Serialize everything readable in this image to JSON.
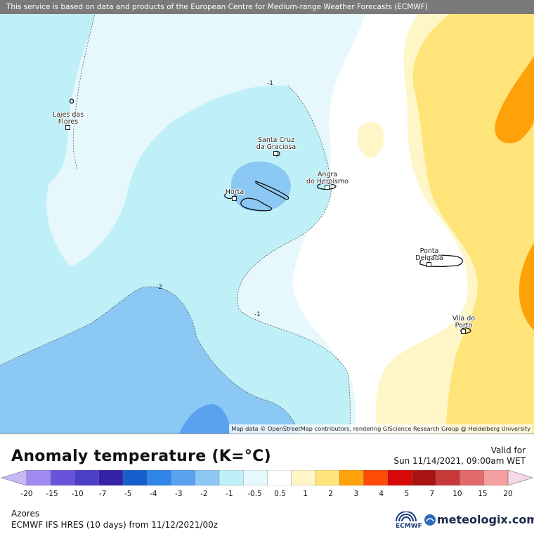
{
  "header": {
    "notice": "This service is based on data and products of the European Centre for Medium-range Weather Forecasts (ECMWF)"
  },
  "map": {
    "credit": "Map data © OpenStreetMap contributors, rendering GIScience Research Group @ Heidelberg University",
    "cities": [
      {
        "name": "Lajes das Flores",
        "line1": "Lajes das",
        "line2": "Flores"
      },
      {
        "name": "Santa Cruz da Graciosa",
        "line1": "Santa Cruz",
        "line2": "da Graciosa"
      },
      {
        "name": "Angra do Heroísmo",
        "line1": "Angra",
        "line2": "do Heroísmo"
      },
      {
        "name": "Horta",
        "line1": "Horta",
        "line2": ""
      },
      {
        "name": "Ponta Delgada",
        "line1": "Ponta",
        "line2": "Delgada"
      },
      {
        "name": "Vila do Porto",
        "line1": "Vila do",
        "line2": "Porto"
      }
    ],
    "contour_labels": [
      "-1",
      "-2",
      "-1"
    ]
  },
  "legend": {
    "title": "Anomaly temperature (K=°C)",
    "valid_label": "Valid for",
    "valid_time": "Sun 11/14/2021, 09:00am WET",
    "ticks": [
      "-20",
      "-15",
      "-10",
      "-7",
      "-5",
      "-4",
      "-3",
      "-2",
      "-1",
      "-0.5",
      "0.5",
      "1",
      "2",
      "3",
      "4",
      "5",
      "7",
      "10",
      "15",
      "20"
    ],
    "colors": [
      "#9f8af0",
      "#6a53dc",
      "#4b3fc8",
      "#3522a8",
      "#1560cc",
      "#2f86e8",
      "#5aa2f0",
      "#8cc8f4",
      "#bff0f8",
      "#e6f8fc",
      "#ffffff",
      "#fff6c8",
      "#ffe47a",
      "#ffa20a",
      "#ff4a08",
      "#d60808",
      "#a81414",
      "#c83a3a",
      "#e26a6a",
      "#f4a0a0"
    ],
    "under_color": "#c8b8f8",
    "over_color": "#f8d8e8"
  },
  "footer": {
    "region": "Azores",
    "model": "ECMWF IFS HRES (10 days) from 11/12/2021/00z",
    "ecmwf_logo_text": "ECMWF",
    "brand": "meteologix.com"
  },
  "colors": {
    "sea_light_blue": "#bff0f8",
    "sea_pale_blue": "#e6f8fc",
    "cold_blue": "#8cc8f4",
    "cold_blue_dark": "#5aa2f0",
    "deep_blue": "#2f86e8",
    "warm_pale": "#fff6c8",
    "warm_yellow": "#ffe47a",
    "warm_orange": "#ffa20a"
  }
}
